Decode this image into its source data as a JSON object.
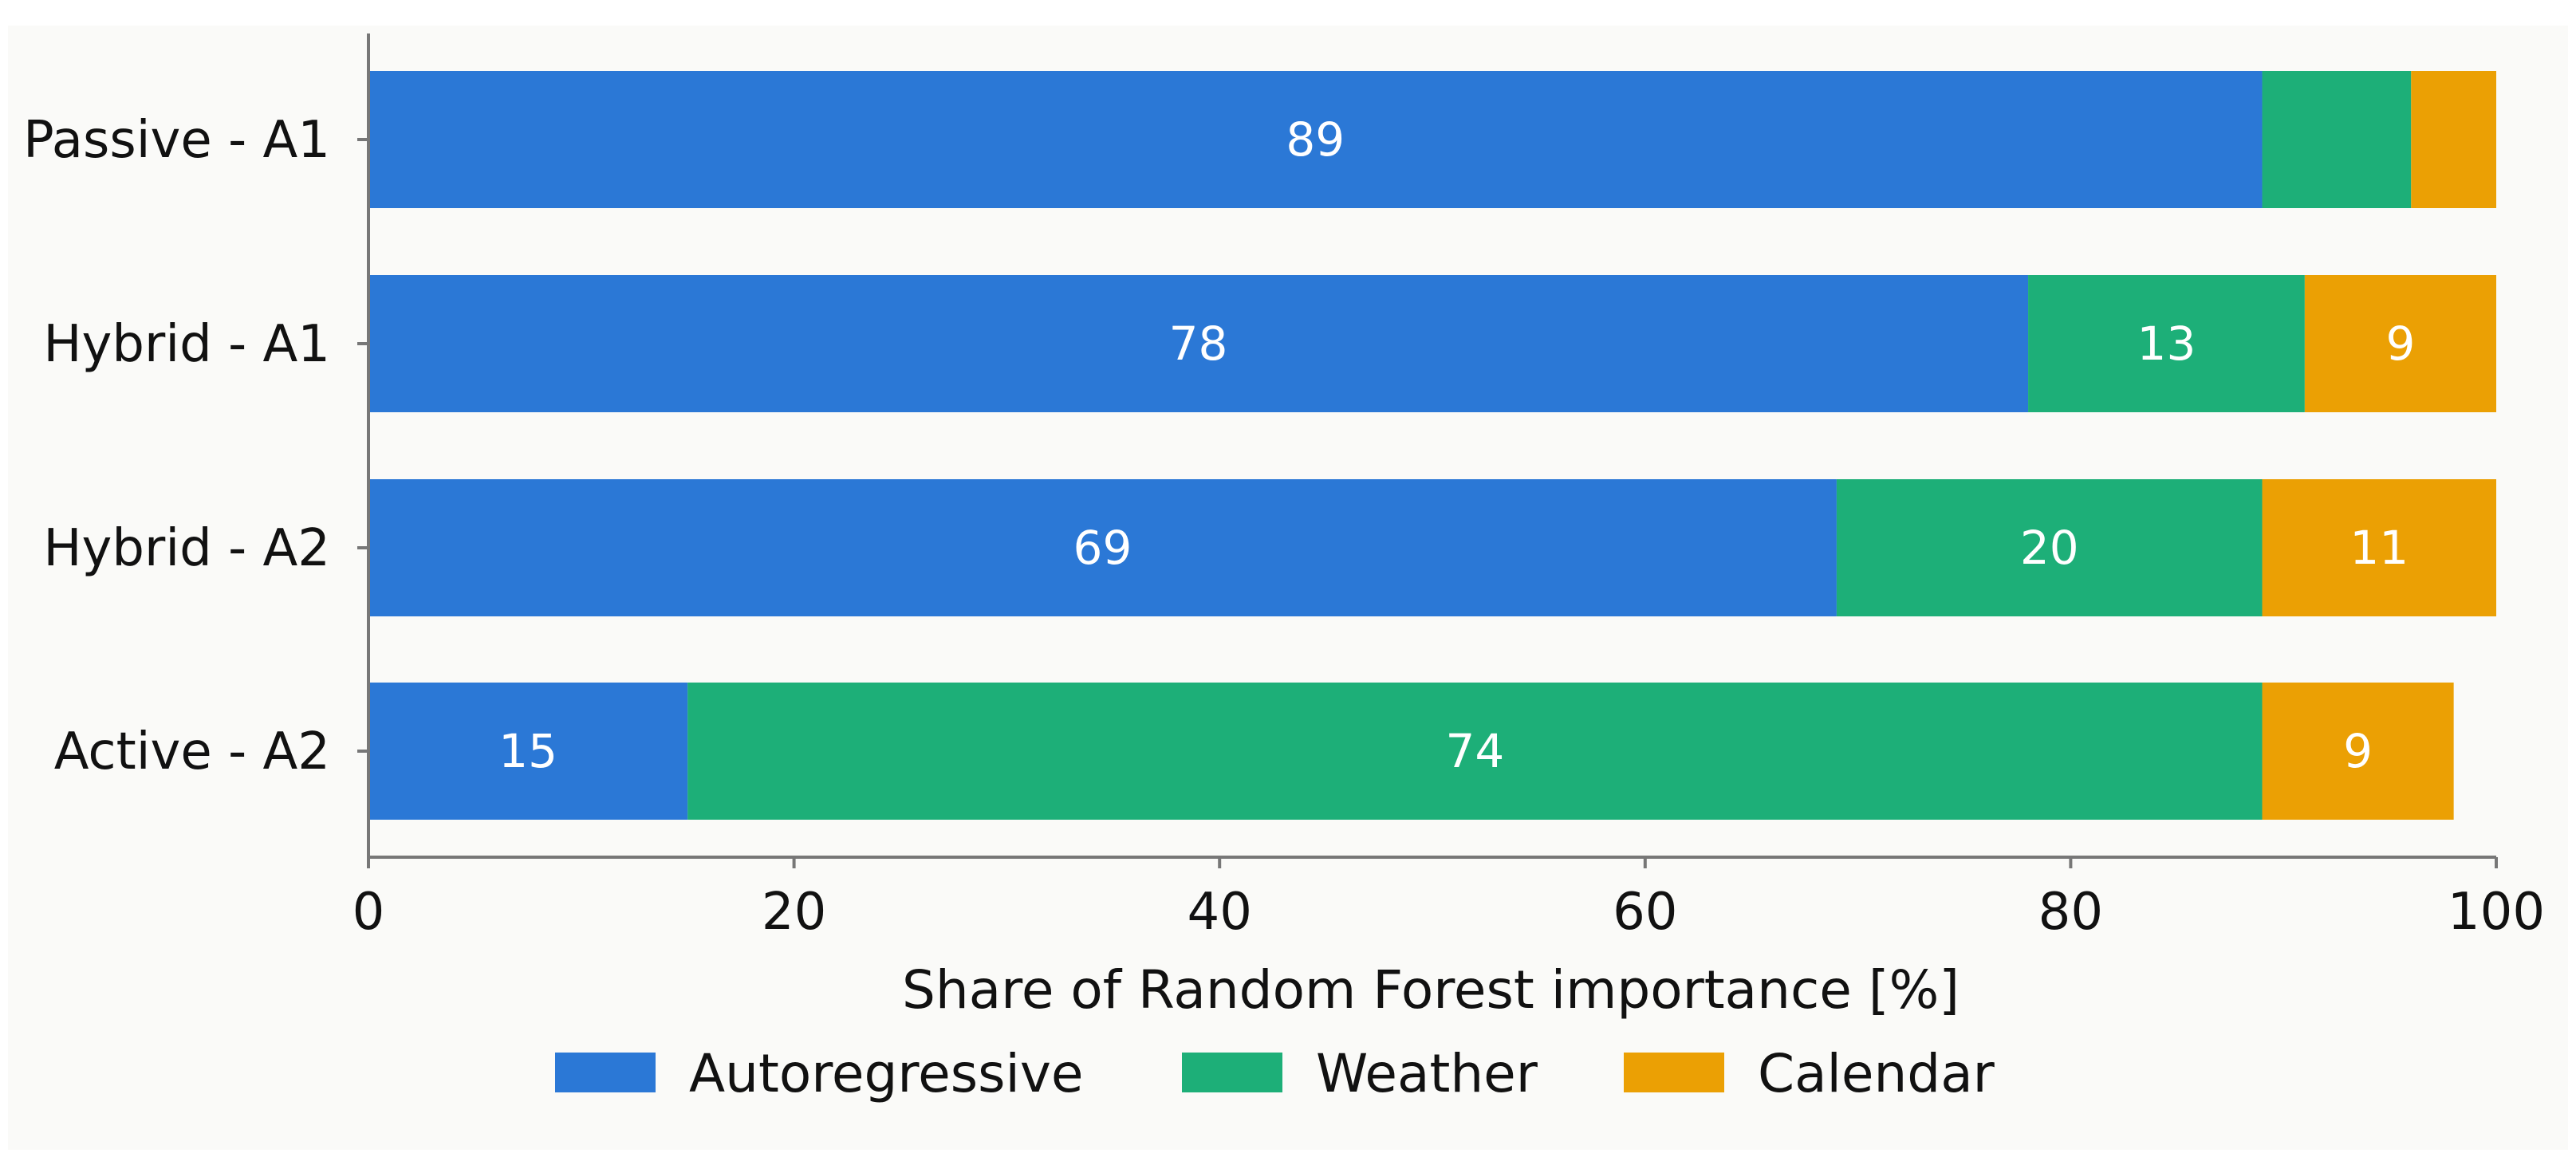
{
  "chart_data": {
    "type": "bar",
    "orientation": "horizontal",
    "stacked": true,
    "categories": [
      "Passive - A1",
      "Hybrid - A1",
      "Hybrid - A2",
      "Active - A2"
    ],
    "series": [
      {
        "name": "Autoregressive",
        "color": "#2b78d6",
        "values": [
          89,
          78,
          69,
          15
        ]
      },
      {
        "name": "Weather",
        "color": "#1daf78",
        "values": [
          7,
          13,
          20,
          74
        ]
      },
      {
        "name": "Calendar",
        "color": "#eba004",
        "values": [
          4,
          9,
          11,
          9
        ]
      }
    ],
    "bar_labels": [
      [
        "89",
        "",
        ""
      ],
      [
        "78",
        "13",
        "9"
      ],
      [
        "69",
        "20",
        "11"
      ],
      [
        "15",
        "74",
        "9"
      ]
    ],
    "xlabel": "Share of Random Forest importance [%]",
    "xlim": [
      0,
      100
    ],
    "xticks": [
      0,
      20,
      40,
      60,
      80,
      100
    ],
    "legend_position": "bottom-center",
    "grid": false,
    "background_color": "#fafaf8"
  }
}
